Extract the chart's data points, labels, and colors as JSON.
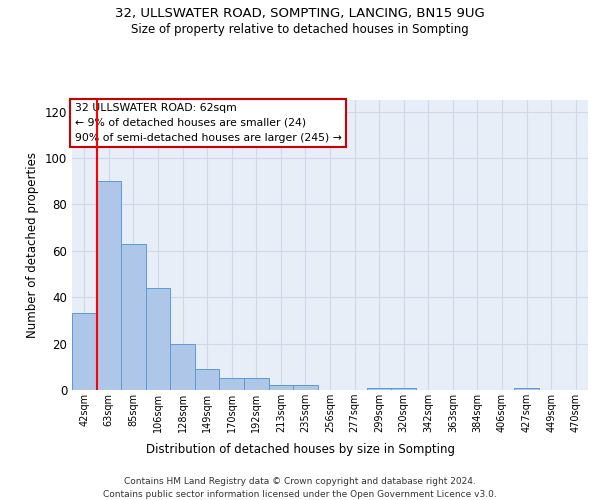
{
  "title1": "32, ULLSWATER ROAD, SOMPTING, LANCING, BN15 9UG",
  "title2": "Size of property relative to detached houses in Sompting",
  "xlabel": "Distribution of detached houses by size in Sompting",
  "ylabel": "Number of detached properties",
  "bar_labels": [
    "42sqm",
    "63sqm",
    "85sqm",
    "106sqm",
    "128sqm",
    "149sqm",
    "170sqm",
    "192sqm",
    "213sqm",
    "235sqm",
    "256sqm",
    "277sqm",
    "299sqm",
    "320sqm",
    "342sqm",
    "363sqm",
    "384sqm",
    "406sqm",
    "427sqm",
    "449sqm",
    "470sqm"
  ],
  "bar_values": [
    33,
    90,
    63,
    44,
    20,
    9,
    5,
    5,
    2,
    2,
    0,
    0,
    1,
    1,
    0,
    0,
    0,
    0,
    1,
    0,
    0
  ],
  "bar_color": "#aec6e8",
  "bar_edge_color": "#5b9bd5",
  "annotation_text": "32 ULLSWATER ROAD: 62sqm\n← 9% of detached houses are smaller (24)\n90% of semi-detached houses are larger (245) →",
  "annotation_box_color": "#ffffff",
  "annotation_box_edge": "#cc0000",
  "ylim": [
    0,
    125
  ],
  "yticks": [
    0,
    20,
    40,
    60,
    80,
    100,
    120
  ],
  "grid_color": "#d0d8e8",
  "background_color": "#e8eef8",
  "footer1": "Contains HM Land Registry data © Crown copyright and database right 2024.",
  "footer2": "Contains public sector information licensed under the Open Government Licence v3.0."
}
